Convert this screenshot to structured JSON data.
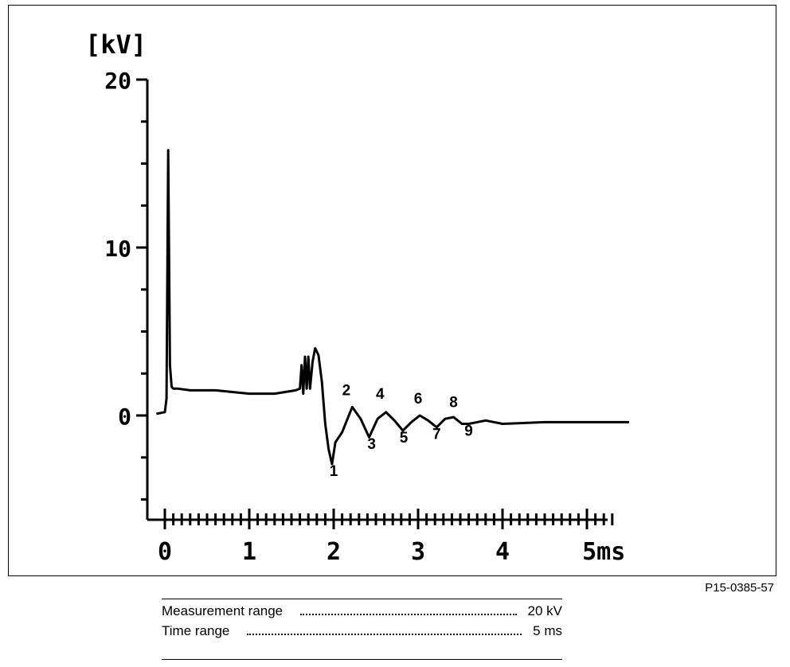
{
  "chart_data": {
    "type": "line",
    "ylabel": "[kV]",
    "xlim": [
      0,
      5.3
    ],
    "ylim": [
      -6,
      20
    ],
    "x_ticks": [
      0,
      1,
      2,
      3,
      4
    ],
    "x_tick_labels": [
      "0",
      "1",
      "2",
      "3",
      "4",
      "5ms"
    ],
    "x_tick_label_values": [
      0,
      1,
      2,
      3,
      4,
      5.2
    ],
    "y_ticks": [
      0,
      10,
      20
    ],
    "y_tick_labels": [
      "0",
      "10",
      "20"
    ],
    "grid": false,
    "series": [
      {
        "x": [
          -0.1,
          0.0,
          0.0,
          0.02,
          0.04,
          0.06,
          0.08,
          0.1,
          0.15,
          0.3,
          0.6,
          1.0,
          1.3,
          1.55,
          1.6,
          1.62,
          1.64,
          1.66,
          1.68,
          1.7,
          1.72,
          1.75,
          1.78,
          1.82,
          1.86,
          1.9,
          1.94,
          1.98,
          2.02,
          2.1,
          2.22,
          2.32,
          2.42,
          2.52,
          2.62,
          2.72,
          2.82,
          2.92,
          3.02,
          3.12,
          3.22,
          3.32,
          3.42,
          3.52,
          3.6,
          3.8,
          4.0,
          4.5,
          5.0,
          5.5
        ],
        "y": [
          0.1,
          0.2,
          0.2,
          1.0,
          15.8,
          3.0,
          1.7,
          1.6,
          1.6,
          1.5,
          1.5,
          1.3,
          1.3,
          1.5,
          1.6,
          3.0,
          1.3,
          3.5,
          1.6,
          3.5,
          1.6,
          3.2,
          4.0,
          3.6,
          2.0,
          -0.5,
          -2.0,
          -2.9,
          -1.6,
          -1.0,
          0.5,
          -0.2,
          -1.3,
          -0.2,
          0.2,
          -0.3,
          -0.9,
          -0.4,
          0.0,
          -0.3,
          -0.7,
          -0.2,
          -0.1,
          -0.5,
          -0.5,
          -0.3,
          -0.5,
          -0.4,
          -0.4,
          -0.4
        ]
      }
    ],
    "annotations": [
      {
        "text": "1",
        "x": 2.0,
        "y": -3.6
      },
      {
        "text": "2",
        "x": 2.15,
        "y": 1.2
      },
      {
        "text": "3",
        "x": 2.45,
        "y": -2.0
      },
      {
        "text": "4",
        "x": 2.55,
        "y": 1.0
      },
      {
        "text": "5",
        "x": 2.83,
        "y": -1.6
      },
      {
        "text": "6",
        "x": 3.0,
        "y": 0.7
      },
      {
        "text": "7",
        "x": 3.22,
        "y": -1.4
      },
      {
        "text": "8",
        "x": 3.42,
        "y": 0.5
      },
      {
        "text": "9",
        "x": 3.6,
        "y": -1.2
      }
    ]
  },
  "figure_id": "P15-0385-57",
  "settings": [
    {
      "label": "Measurement range",
      "value": "20 kV"
    },
    {
      "label": "Time range",
      "value": "5 ms"
    }
  ]
}
